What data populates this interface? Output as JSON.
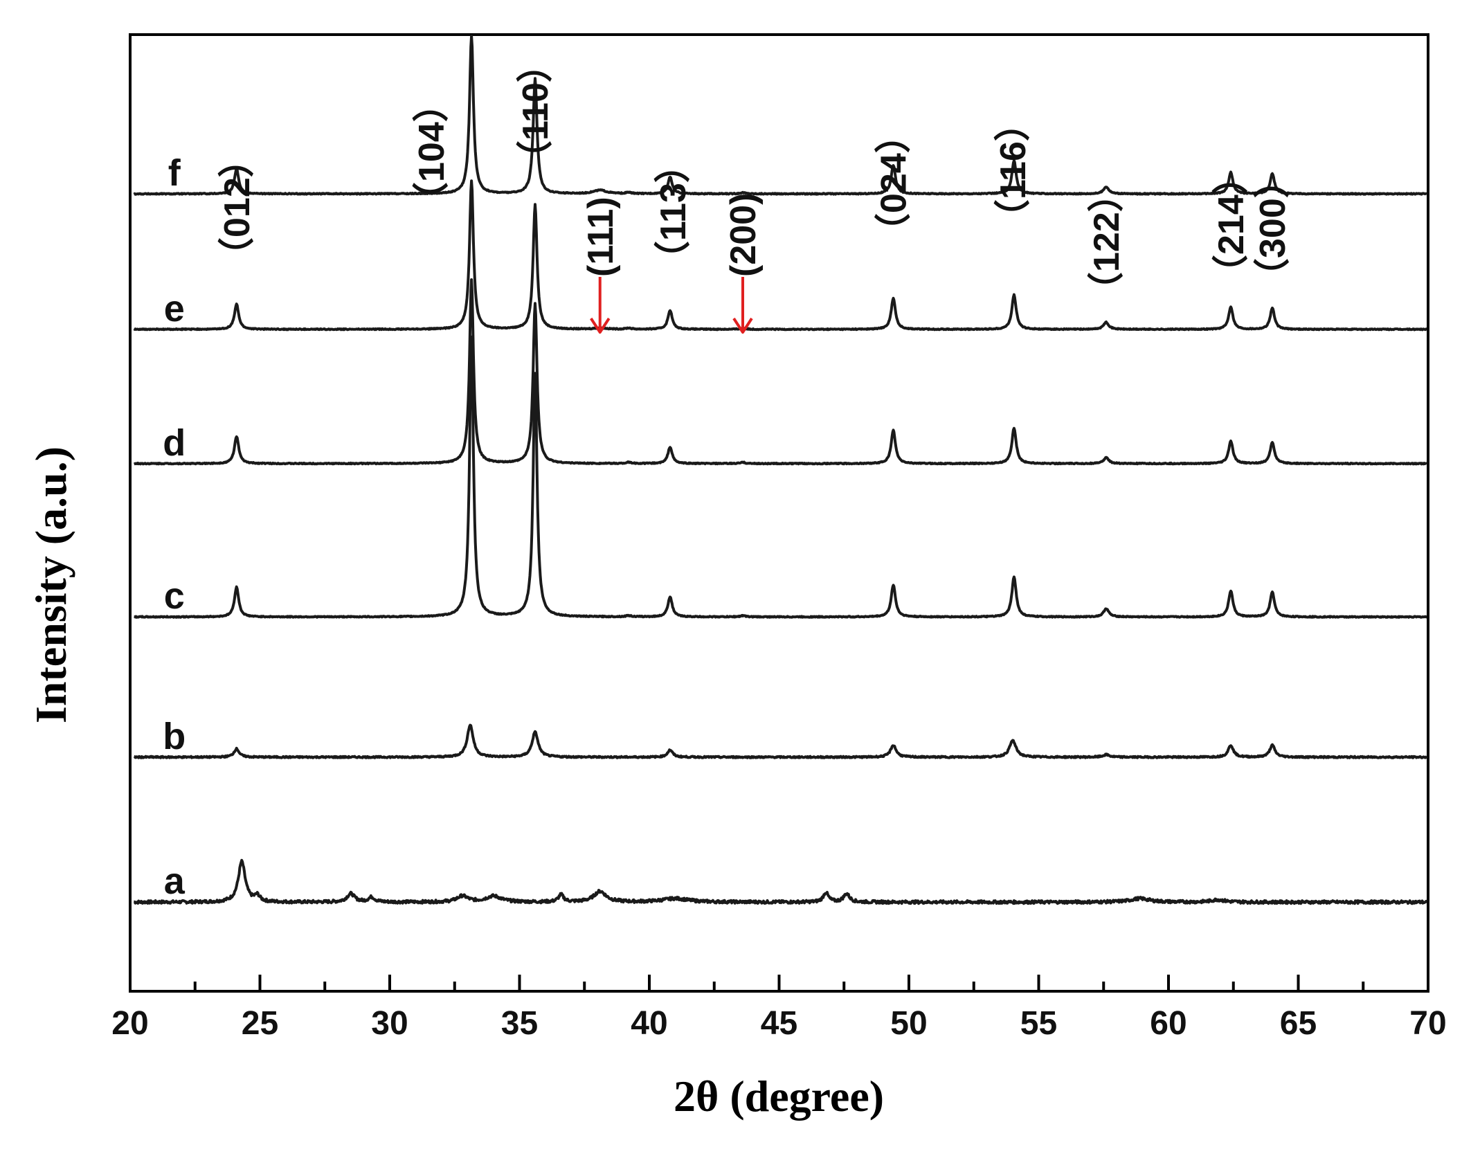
{
  "chart_data": {
    "type": "line",
    "title": "",
    "xlabel": "2θ (degree)",
    "ylabel": "Intensity (a.u.)",
    "xlim": [
      20,
      70
    ],
    "xticks": [
      20,
      25,
      30,
      35,
      40,
      45,
      50,
      55,
      60,
      65,
      70
    ],
    "xtick_labels": [
      "20",
      "25",
      "30",
      "35",
      "40",
      "45",
      "50",
      "55",
      "60",
      "65",
      "70"
    ],
    "y_ticks_shown": false,
    "grid": false,
    "colors": {
      "line": "#1a1a1a",
      "axis": "#000000",
      "arrow": "#e02020"
    },
    "series": [
      {
        "name": "a",
        "baseline": 1.0,
        "noise": 0.012,
        "peaks": [
          {
            "x": 24.3,
            "h": 0.34,
            "w": 0.16
          },
          {
            "x": 24.9,
            "h": 0.05,
            "w": 0.12
          },
          {
            "x": 28.5,
            "h": 0.07,
            "w": 0.18
          },
          {
            "x": 29.3,
            "h": 0.04,
            "w": 0.15
          },
          {
            "x": 32.8,
            "h": 0.05,
            "w": 0.25
          },
          {
            "x": 34.0,
            "h": 0.05,
            "w": 0.35
          },
          {
            "x": 36.6,
            "h": 0.06,
            "w": 0.12
          },
          {
            "x": 38.1,
            "h": 0.09,
            "w": 0.28
          },
          {
            "x": 41.0,
            "h": 0.03,
            "w": 0.6
          },
          {
            "x": 46.8,
            "h": 0.08,
            "w": 0.12
          },
          {
            "x": 47.6,
            "h": 0.07,
            "w": 0.14
          },
          {
            "x": 58.9,
            "h": 0.03,
            "w": 0.45
          },
          {
            "x": 61.9,
            "h": 0.02,
            "w": 0.3
          }
        ]
      },
      {
        "name": "b",
        "baseline": 2.22,
        "noise": 0.006,
        "peaks": [
          {
            "x": 24.1,
            "h": 0.07,
            "w": 0.12
          },
          {
            "x": 33.1,
            "h": 0.27,
            "w": 0.14
          },
          {
            "x": 35.6,
            "h": 0.21,
            "w": 0.14
          },
          {
            "x": 40.8,
            "h": 0.06,
            "w": 0.12
          },
          {
            "x": 49.4,
            "h": 0.1,
            "w": 0.13
          },
          {
            "x": 54.0,
            "h": 0.14,
            "w": 0.15
          },
          {
            "x": 57.6,
            "h": 0.02,
            "w": 0.15
          },
          {
            "x": 62.4,
            "h": 0.1,
            "w": 0.12
          },
          {
            "x": 64.0,
            "h": 0.1,
            "w": 0.12
          }
        ]
      },
      {
        "name": "c",
        "baseline": 3.4,
        "noise": 0.004,
        "peaks": [
          {
            "x": 24.1,
            "h": 0.25,
            "w": 0.1
          },
          {
            "x": 33.15,
            "h": 2.35,
            "w": 0.09
          },
          {
            "x": 35.6,
            "h": 2.05,
            "w": 0.09
          },
          {
            "x": 39.2,
            "h": 0.01,
            "w": 0.12
          },
          {
            "x": 40.8,
            "h": 0.17,
            "w": 0.1
          },
          {
            "x": 43.6,
            "h": 0.01,
            "w": 0.12
          },
          {
            "x": 49.4,
            "h": 0.27,
            "w": 0.1
          },
          {
            "x": 54.05,
            "h": 0.34,
            "w": 0.1
          },
          {
            "x": 57.6,
            "h": 0.07,
            "w": 0.12
          },
          {
            "x": 62.4,
            "h": 0.22,
            "w": 0.1
          },
          {
            "x": 64.0,
            "h": 0.21,
            "w": 0.1
          }
        ]
      },
      {
        "name": "d",
        "baseline": 4.69,
        "noise": 0.004,
        "peaks": [
          {
            "x": 24.1,
            "h": 0.23,
            "w": 0.1
          },
          {
            "x": 33.15,
            "h": 1.55,
            "w": 0.09
          },
          {
            "x": 35.6,
            "h": 1.35,
            "w": 0.09
          },
          {
            "x": 39.2,
            "h": 0.01,
            "w": 0.12
          },
          {
            "x": 40.8,
            "h": 0.14,
            "w": 0.1
          },
          {
            "x": 43.6,
            "h": 0.01,
            "w": 0.12
          },
          {
            "x": 49.4,
            "h": 0.28,
            "w": 0.1
          },
          {
            "x": 54.05,
            "h": 0.3,
            "w": 0.1
          },
          {
            "x": 57.6,
            "h": 0.05,
            "w": 0.12
          },
          {
            "x": 62.4,
            "h": 0.19,
            "w": 0.1
          },
          {
            "x": 64.0,
            "h": 0.18,
            "w": 0.1
          }
        ]
      },
      {
        "name": "e",
        "baseline": 5.82,
        "noise": 0.004,
        "peaks": [
          {
            "x": 24.1,
            "h": 0.21,
            "w": 0.1
          },
          {
            "x": 33.15,
            "h": 1.25,
            "w": 0.09
          },
          {
            "x": 35.6,
            "h": 1.05,
            "w": 0.09
          },
          {
            "x": 38.1,
            "h": 0.01,
            "w": 0.3
          },
          {
            "x": 39.2,
            "h": 0.01,
            "w": 0.12
          },
          {
            "x": 40.8,
            "h": 0.16,
            "w": 0.1
          },
          {
            "x": 43.6,
            "h": 0.01,
            "w": 0.12
          },
          {
            "x": 49.4,
            "h": 0.26,
            "w": 0.1
          },
          {
            "x": 54.05,
            "h": 0.29,
            "w": 0.1
          },
          {
            "x": 57.6,
            "h": 0.06,
            "w": 0.12
          },
          {
            "x": 62.4,
            "h": 0.19,
            "w": 0.1
          },
          {
            "x": 64.0,
            "h": 0.18,
            "w": 0.1
          }
        ]
      },
      {
        "name": "f",
        "baseline": 6.96,
        "noise": 0.004,
        "peaks": [
          {
            "x": 24.1,
            "h": 0.21,
            "w": 0.1
          },
          {
            "x": 33.15,
            "h": 1.33,
            "w": 0.09
          },
          {
            "x": 35.6,
            "h": 0.97,
            "w": 0.09
          },
          {
            "x": 38.1,
            "h": 0.03,
            "w": 0.3
          },
          {
            "x": 39.2,
            "h": 0.01,
            "w": 0.12
          },
          {
            "x": 40.8,
            "h": 0.14,
            "w": 0.1
          },
          {
            "x": 43.6,
            "h": 0.01,
            "w": 0.12
          },
          {
            "x": 49.4,
            "h": 0.24,
            "w": 0.1
          },
          {
            "x": 54.05,
            "h": 0.28,
            "w": 0.1
          },
          {
            "x": 57.6,
            "h": 0.06,
            "w": 0.12
          },
          {
            "x": 62.4,
            "h": 0.18,
            "w": 0.1
          },
          {
            "x": 64.0,
            "h": 0.17,
            "w": 0.1
          }
        ]
      }
    ],
    "peak_labels": [
      {
        "text": "（012）",
        "x": 24.1
      },
      {
        "text": "（104）",
        "x": 31.6
      },
      {
        "text": "（110）",
        "x": 35.6
      },
      {
        "text": "(111)",
        "x": 38.1
      },
      {
        "text": "（113）",
        "x": 40.9
      },
      {
        "text": "(200)",
        "x": 43.6
      },
      {
        "text": "（024）",
        "x": 49.4
      },
      {
        "text": "（116）",
        "x": 54.0
      },
      {
        "text": "（122）",
        "x": 57.6
      },
      {
        "text": "（214）",
        "x": 62.4
      },
      {
        "text": "（300）",
        "x": 64.0
      }
    ],
    "arrows": [
      {
        "x": 38.1,
        "points_to": "(111)"
      },
      {
        "x": 43.6,
        "points_to": "(200)"
      }
    ]
  }
}
